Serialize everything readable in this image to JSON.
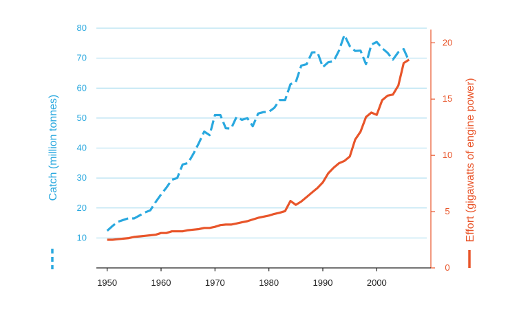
{
  "chart_data": {
    "type": "line",
    "title": "",
    "xlabel": "",
    "xlim": [
      1948,
      2008
    ],
    "xticks": [
      1950,
      1960,
      1970,
      1980,
      1990,
      2000
    ],
    "xtick_labels": [
      "1950",
      "1960",
      "1970",
      "1980",
      "1990",
      "2000"
    ],
    "grid": true,
    "y_left": {
      "label": "Catch (million tonnes)",
      "ylim": [
        0,
        80
      ],
      "ticks": [
        10,
        20,
        30,
        40,
        50,
        60,
        70,
        80
      ],
      "tick_labels": [
        "10",
        "20",
        "30",
        "40",
        "50",
        "60",
        "70",
        "80"
      ]
    },
    "y_right": {
      "label": "Effort (gigawatts of engine power)",
      "ylim": [
        0,
        21.3
      ],
      "ticks": [
        0,
        5,
        10,
        15,
        20
      ],
      "tick_labels": [
        "0",
        "5",
        "10",
        "15",
        "20"
      ]
    },
    "series": [
      {
        "axis": "left",
        "style": "dashed",
        "color": "#29a8df",
        "x": [
          1950,
          1951,
          1952,
          1953,
          1954,
          1955,
          1956,
          1957,
          1958,
          1959,
          1960,
          1961,
          1962,
          1963,
          1964,
          1965,
          1966,
          1967,
          1968,
          1969,
          1970,
          1971,
          1972,
          1973,
          1974,
          1975,
          1976,
          1977,
          1978,
          1979,
          1980,
          1981,
          1982,
          1983,
          1984,
          1985,
          1986,
          1987,
          1988,
          1989,
          1990,
          1991,
          1992,
          1993,
          1994,
          1995,
          1996,
          1997,
          1998,
          1999,
          2000,
          2001,
          2002,
          2003,
          2004,
          2005,
          2006
        ],
        "values": [
          12.4,
          14,
          15.4,
          16,
          16.6,
          16.5,
          17.5,
          18.5,
          19.2,
          22,
          24.5,
          26.8,
          29.4,
          30,
          34.5,
          35,
          38.1,
          41.6,
          45.5,
          44.3,
          51,
          51,
          46.6,
          46.5,
          50.4,
          49.4,
          50,
          47.3,
          51.5,
          52,
          52.1,
          53.4,
          56,
          56,
          61.3,
          62,
          67.5,
          68,
          71.9,
          72,
          67,
          68.6,
          69,
          72.5,
          77.7,
          74,
          72.4,
          72.5,
          68,
          74.5,
          75.4,
          73.3,
          71.8,
          69.5,
          72,
          73,
          69
        ]
      },
      {
        "axis": "right",
        "style": "solid",
        "color": "#e8552a",
        "x": [
          1950,
          1951,
          1952,
          1953,
          1954,
          1955,
          1956,
          1957,
          1958,
          1959,
          1960,
          1961,
          1962,
          1963,
          1964,
          1965,
          1966,
          1967,
          1968,
          1969,
          1970,
          1971,
          1972,
          1973,
          1974,
          1975,
          1976,
          1977,
          1978,
          1979,
          1980,
          1981,
          1982,
          1983,
          1984,
          1985,
          1986,
          1987,
          1988,
          1989,
          1990,
          1991,
          1992,
          1993,
          1994,
          1995,
          1996,
          1997,
          1998,
          1999,
          2000,
          2001,
          2002,
          2003,
          2004,
          2005,
          2006
        ],
        "values": [
          2.5,
          2.5,
          2.55,
          2.6,
          2.65,
          2.75,
          2.8,
          2.85,
          2.9,
          2.95,
          3.1,
          3.1,
          3.25,
          3.25,
          3.25,
          3.35,
          3.4,
          3.45,
          3.55,
          3.55,
          3.65,
          3.8,
          3.85,
          3.85,
          3.95,
          4.05,
          4.15,
          4.3,
          4.45,
          4.55,
          4.65,
          4.8,
          4.9,
          5.05,
          5.95,
          5.6,
          5.9,
          6.3,
          6.7,
          7.1,
          7.6,
          8.4,
          8.9,
          9.3,
          9.5,
          9.9,
          11.4,
          12.1,
          13.4,
          13.8,
          13.6,
          14.9,
          15.3,
          15.4,
          16.2,
          18.2,
          18.5
        ]
      }
    ],
    "legend": [
      {
        "series": 0,
        "style": "dashed",
        "color": "#29a8df",
        "placement": "left"
      },
      {
        "series": 1,
        "style": "solid",
        "color": "#e8552a",
        "placement": "right"
      }
    ],
    "colors": {
      "catch": "#29a8df",
      "effort": "#e8552a",
      "grid": "#9fd8ee",
      "axis": "#222222"
    }
  }
}
